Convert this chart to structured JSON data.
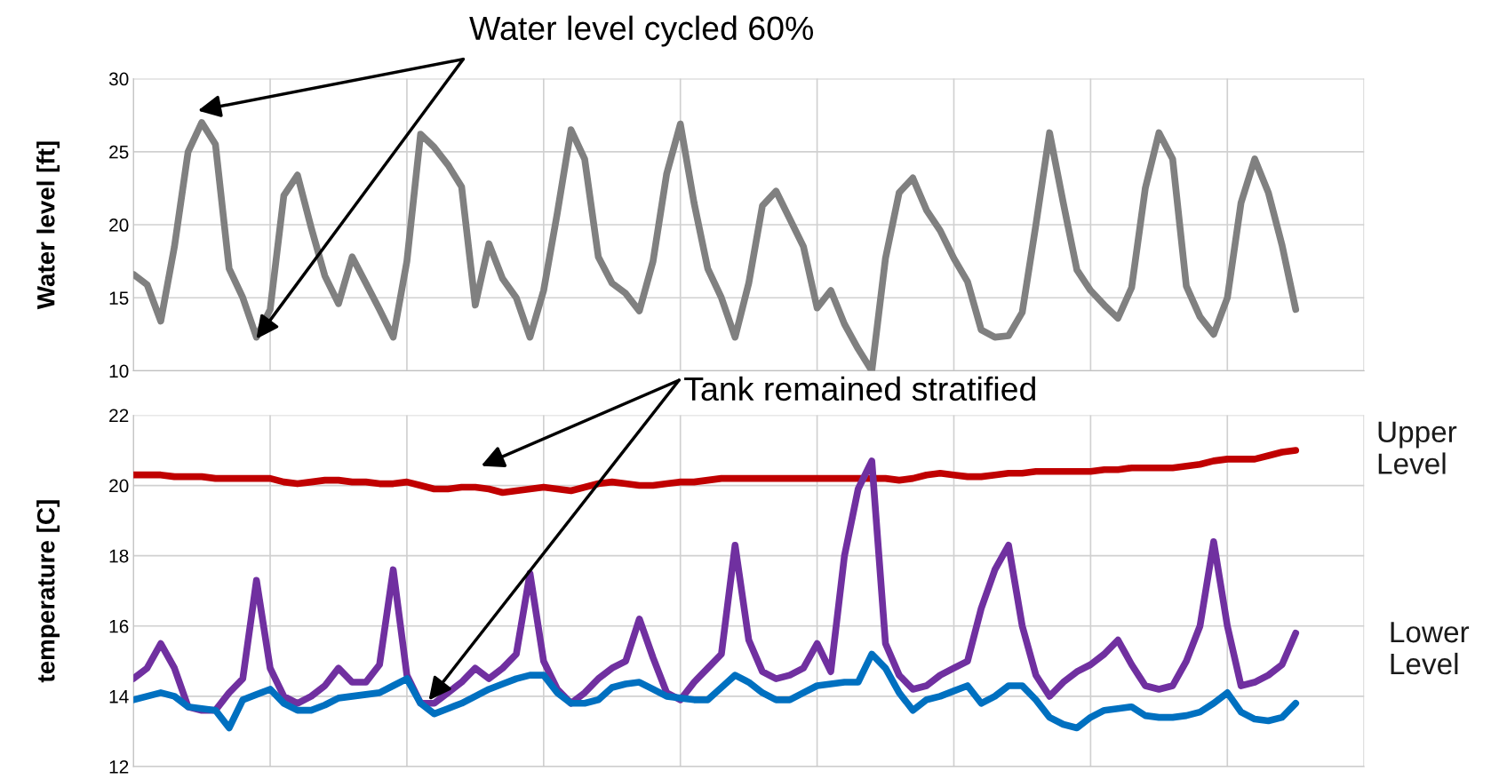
{
  "chart_data": [
    {
      "type": "line",
      "ylabel": "Water level [ft]",
      "categories": [
        null,
        null,
        null,
        null,
        null,
        null,
        null,
        null,
        null,
        null,
        null,
        null,
        null,
        null,
        null,
        null,
        null,
        null,
        null,
        null,
        null,
        null,
        null,
        null,
        null,
        null,
        null,
        null,
        null,
        null,
        null,
        null,
        null,
        null,
        null,
        null,
        null,
        null,
        null,
        null,
        null,
        null,
        null,
        null,
        null,
        null,
        null,
        null,
        null,
        null,
        null,
        null,
        null,
        null,
        null,
        null,
        null,
        null,
        null,
        null,
        null,
        null,
        null,
        null,
        null,
        null,
        null,
        null,
        null,
        null,
        null,
        null,
        null,
        null,
        null,
        null,
        null,
        null,
        null,
        null,
        null,
        null,
        null,
        null,
        null,
        null,
        null,
        null,
        null,
        null,
        null
      ],
      "ylim": [
        10,
        30
      ],
      "yticks": [
        10,
        15,
        20,
        25,
        30
      ],
      "grid": true,
      "legend": false,
      "line_style": "solid",
      "marker": "none",
      "annotations": [
        "Water level cycled 60%"
      ],
      "series": [
        {
          "color": "#808080",
          "values": [
            16.6,
            15.9,
            13.4,
            18.5,
            25,
            27,
            25.5,
            17,
            15,
            12.3,
            14.2,
            22,
            23.4,
            19.8,
            16.5,
            14.6,
            17.8,
            16,
            14.2,
            12.3,
            17.5,
            26.2,
            25.3,
            24.1,
            22.6,
            14.5,
            18.7,
            16.3,
            15,
            12.3,
            15.5,
            20.8,
            26.5,
            24.5,
            17.8,
            16,
            15.3,
            14.1,
            17.5,
            23.5,
            26.9,
            21.5,
            17,
            15,
            12.3,
            16,
            21.3,
            22.3,
            20.4,
            18.5,
            14.3,
            15.5,
            13.2,
            11.5,
            10,
            17.7,
            22.2,
            23.2,
            21,
            19.6,
            17.7,
            16.1,
            12.8,
            12.3,
            12.4,
            14,
            20,
            26.3,
            21.5,
            16.9,
            15.5,
            14.5,
            13.6,
            15.7,
            22.5,
            26.3,
            24.5,
            15.8,
            13.7,
            12.5,
            15,
            21.5,
            24.5,
            22.2,
            18.6,
            14.2,
            null,
            null,
            null,
            null,
            null
          ]
        }
      ]
    },
    {
      "type": "line",
      "ylabel": "temperature [C]",
      "categories": [
        null,
        null,
        null,
        null,
        null,
        null,
        null,
        null,
        null,
        null,
        null,
        null,
        null,
        null,
        null,
        null,
        null,
        null,
        null,
        null,
        null,
        null,
        null,
        null,
        null,
        null,
        null,
        null,
        null,
        null,
        null,
        null,
        null,
        null,
        null,
        null,
        null,
        null,
        null,
        null,
        null,
        null,
        null,
        null,
        null,
        null,
        null,
        null,
        null,
        null,
        null,
        null,
        null,
        null,
        null,
        null,
        null,
        null,
        null,
        null,
        null,
        null,
        null,
        null,
        null,
        null,
        null,
        null,
        null,
        null,
        null,
        null,
        null,
        null,
        null,
        null,
        null,
        null,
        null,
        null,
        null,
        null,
        null,
        null,
        null,
        null,
        null,
        null,
        null,
        null,
        null
      ],
      "ylim": [
        12,
        22
      ],
      "yticks": [
        12,
        14,
        16,
        18,
        20,
        22
      ],
      "grid": true,
      "legend": false,
      "line_style": "solid",
      "marker": "none",
      "annotations": [
        "Tank remained stratified",
        "Lower Level"
      ],
      "series": [
        {
          "name": "Upper Level",
          "color": "#c00000",
          "values": [
            20.3,
            20.3,
            20.3,
            20.25,
            20.25,
            20.25,
            20.2,
            20.2,
            20.2,
            20.2,
            20.2,
            20.1,
            20.05,
            20.1,
            20.15,
            20.15,
            20.1,
            20.1,
            20.05,
            20.05,
            20.1,
            20,
            19.9,
            19.9,
            19.95,
            19.95,
            19.9,
            19.8,
            19.85,
            19.9,
            19.95,
            19.9,
            19.85,
            19.95,
            20.05,
            20.1,
            20.05,
            20,
            20,
            20.05,
            20.1,
            20.1,
            20.15,
            20.2,
            20.2,
            20.2,
            20.2,
            20.2,
            20.2,
            20.2,
            20.2,
            20.2,
            20.2,
            20.2,
            20.2,
            20.2,
            20.15,
            20.2,
            20.3,
            20.35,
            20.3,
            20.25,
            20.25,
            20.3,
            20.35,
            20.35,
            20.4,
            20.4,
            20.4,
            20.4,
            20.4,
            20.45,
            20.45,
            20.5,
            20.5,
            20.5,
            20.5,
            20.55,
            20.6,
            20.7,
            20.75,
            20.75,
            20.75,
            20.85,
            20.95,
            21,
            null,
            null,
            null,
            null,
            null
          ]
        },
        {
          "color": "#7030a0",
          "values": [
            14.5,
            14.8,
            15.5,
            14.8,
            13.7,
            13.6,
            13.6,
            14.1,
            14.5,
            17.3,
            14.8,
            14,
            13.8,
            14,
            14.3,
            14.8,
            14.4,
            14.4,
            14.9,
            17.6,
            14.6,
            13.8,
            13.8,
            14.1,
            14.4,
            14.8,
            14.5,
            14.8,
            15.2,
            17.5,
            15,
            14.2,
            13.8,
            14.1,
            14.5,
            14.8,
            15,
            16.2,
            15.1,
            14.1,
            13.9,
            14.4,
            14.8,
            15.2,
            18.3,
            15.6,
            14.7,
            14.5,
            14.6,
            14.8,
            15.5,
            14.7,
            18,
            19.9,
            20.7,
            15.5,
            14.6,
            14.2,
            14.3,
            14.6,
            14.8,
            15,
            16.5,
            17.6,
            18.3,
            16,
            14.6,
            14,
            14.4,
            14.7,
            14.9,
            15.2,
            15.6,
            14.9,
            14.3,
            14.2,
            14.3,
            15,
            16,
            18.4,
            16,
            14.3,
            14.4,
            14.6,
            14.9,
            15.8,
            null,
            null,
            null,
            null,
            null
          ]
        },
        {
          "color": "#0070c0",
          "values": [
            13.9,
            14,
            14.1,
            14,
            13.7,
            13.65,
            13.6,
            13.1,
            13.9,
            14.05,
            14.2,
            13.8,
            13.6,
            13.6,
            13.75,
            13.95,
            14,
            14.05,
            14.1,
            14.3,
            14.5,
            13.8,
            13.5,
            13.65,
            13.8,
            14,
            14.2,
            14.35,
            14.5,
            14.6,
            14.6,
            14.1,
            13.8,
            13.8,
            13.9,
            14.25,
            14.35,
            14.4,
            14.2,
            14,
            13.95,
            13.9,
            13.9,
            14.25,
            14.6,
            14.4,
            14.1,
            13.9,
            13.9,
            14.1,
            14.3,
            14.35,
            14.4,
            14.4,
            15.2,
            14.8,
            14.1,
            13.6,
            13.9,
            14,
            14.15,
            14.3,
            13.8,
            14,
            14.3,
            14.3,
            13.9,
            13.4,
            13.2,
            13.1,
            13.4,
            13.6,
            13.65,
            13.7,
            13.45,
            13.4,
            13.4,
            13.45,
            13.55,
            13.8,
            14.1,
            13.55,
            13.35,
            13.3,
            13.4,
            13.8,
            null,
            null,
            null,
            null,
            null
          ]
        }
      ]
    }
  ]
}
